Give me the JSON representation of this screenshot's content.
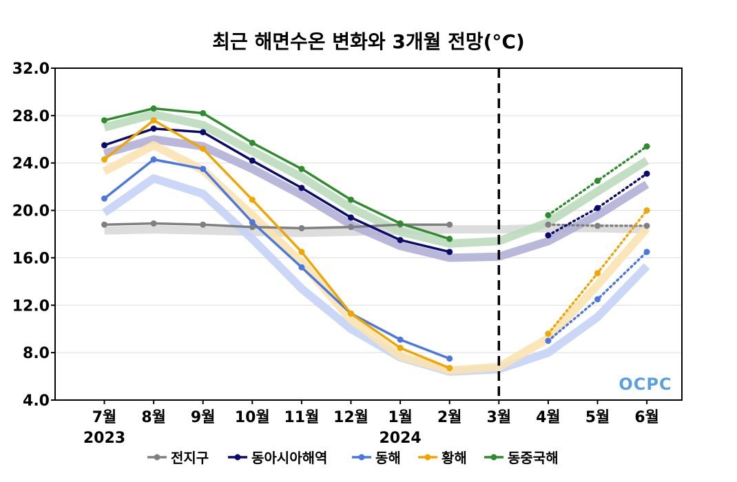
{
  "chart_data": {
    "type": "line",
    "title": "최근 해면수온 변화와 3개월 전망(°C)",
    "xlabel": "",
    "ylabel": "",
    "ylim": [
      4.0,
      32.0
    ],
    "yticks": [
      "4.0",
      "8.0",
      "12.0",
      "16.0",
      "20.0",
      "24.0",
      "28.0",
      "32.0"
    ],
    "ytick_values": [
      4,
      8,
      12,
      16,
      20,
      24,
      28,
      32
    ],
    "categories": [
      "7월",
      "8월",
      "9월",
      "10월",
      "11월",
      "12월",
      "1월",
      "2월",
      "3월",
      "4월",
      "5월",
      "6월"
    ],
    "year_labels": [
      {
        "index": 0,
        "label": "2023"
      },
      {
        "index": 6,
        "label": "2024"
      }
    ],
    "forecast_divider_index": 8,
    "grid": true,
    "legend_position": "bottom",
    "logo": "OCPC",
    "series": [
      {
        "name": "전지구",
        "color": "#808080",
        "band_color": "#d9d9d9",
        "observed": [
          18.8,
          18.9,
          18.8,
          18.6,
          18.5,
          18.6,
          18.8,
          18.8
        ],
        "climatology": [
          18.3,
          18.4,
          18.3,
          18.2,
          18.1,
          18.2,
          18.3,
          18.4,
          18.4,
          18.5,
          18.5,
          18.4
        ],
        "forecast": [
          null,
          null,
          null,
          null,
          null,
          null,
          null,
          null,
          null,
          18.8,
          18.7,
          18.7
        ]
      },
      {
        "name": "동아시아해역",
        "color": "#0b0b6e",
        "band_color": "#b3b0d6",
        "observed": [
          25.5,
          26.9,
          26.6,
          24.2,
          21.9,
          19.4,
          17.5,
          16.5
        ],
        "climatology": [
          24.8,
          26.0,
          25.4,
          23.5,
          21.3,
          18.8,
          17.0,
          16.0,
          16.1,
          17.4,
          19.6,
          22.2
        ],
        "forecast": [
          null,
          null,
          null,
          null,
          null,
          null,
          null,
          null,
          null,
          17.9,
          20.2,
          23.1
        ]
      },
      {
        "name": "동해",
        "color": "#4a78e0",
        "band_color": "#c5d3f6",
        "observed": [
          21.0,
          24.3,
          23.5,
          19.0,
          15.2,
          11.3,
          9.1,
          7.5
        ],
        "climatology": [
          19.8,
          22.7,
          21.4,
          17.6,
          13.4,
          10.0,
          7.6,
          6.4,
          6.6,
          8.0,
          11.0,
          15.3
        ],
        "forecast": [
          null,
          null,
          null,
          null,
          null,
          null,
          null,
          null,
          null,
          9.0,
          12.5,
          16.5
        ]
      },
      {
        "name": "황해",
        "color": "#f0a500",
        "band_color": "#fbe3b2",
        "observed": [
          24.3,
          27.6,
          25.2,
          20.9,
          16.5,
          11.3,
          8.4,
          6.7
        ],
        "climatology": [
          23.3,
          25.5,
          23.4,
          19.6,
          15.6,
          10.8,
          7.7,
          6.5,
          6.8,
          9.2,
          13.7,
          18.5
        ],
        "forecast": [
          null,
          null,
          null,
          null,
          null,
          null,
          null,
          null,
          null,
          9.6,
          14.7,
          20.0
        ]
      },
      {
        "name": "동중국해",
        "color": "#2e8b2e",
        "band_color": "#bddcbd",
        "observed": [
          27.6,
          28.6,
          28.2,
          25.7,
          23.5,
          20.9,
          18.9,
          17.6
        ],
        "climatology": [
          27.0,
          28.1,
          27.2,
          25.0,
          22.8,
          20.2,
          18.2,
          17.2,
          17.4,
          19.0,
          21.6,
          24.2
        ],
        "forecast": [
          null,
          null,
          null,
          null,
          null,
          null,
          null,
          null,
          null,
          19.6,
          22.5,
          25.4
        ]
      }
    ]
  }
}
